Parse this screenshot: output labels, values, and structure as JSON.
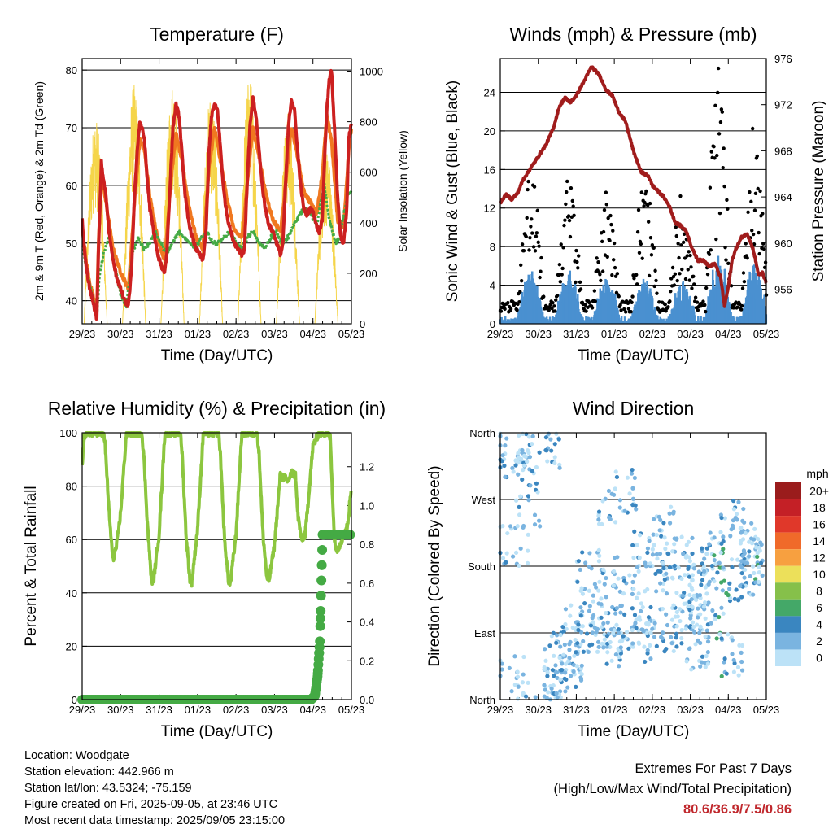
{
  "chart_data": [
    {
      "type": "line",
      "title": "Temperature (F)",
      "xlabel": "Time (Day/UTC)",
      "ylabel": "2m & 9m T (Red, Orange) & 2m Td (Green)",
      "y2label": "Solar Insolation (Yellow)",
      "x_ticks": [
        "29/23",
        "30/23",
        "31/23",
        "01/23",
        "02/23",
        "03/23",
        "04/23",
        "05/23"
      ],
      "ylim": [
        36,
        82
      ],
      "y_ticks": [
        40,
        50,
        60,
        70,
        80
      ],
      "y2lim": [
        0,
        1050
      ],
      "y2_ticks": [
        0,
        200,
        400,
        600,
        800,
        1000
      ],
      "grid": "horizontal",
      "series": [
        {
          "name": "2m T",
          "color": "#cc2020",
          "axis": "left",
          "x": [
            0,
            0.04,
            0.1,
            0.2,
            0.28,
            0.33,
            0.38,
            0.42,
            0.5,
            0.55,
            0.62,
            0.7,
            0.8,
            0.9,
            1.0,
            1.1,
            1.2,
            1.28,
            1.36,
            1.44,
            1.5,
            1.55,
            1.62,
            1.68,
            1.76,
            1.86,
            1.96,
            2.06,
            2.14,
            2.2,
            2.3,
            2.36,
            2.44,
            2.52,
            2.6,
            2.68,
            2.76,
            2.86,
            2.96,
            3.06,
            3.14,
            3.22,
            3.3,
            3.36,
            3.44,
            3.52,
            3.6,
            3.68,
            3.76,
            3.86,
            3.96,
            4.06,
            4.16,
            4.22,
            4.3,
            4.36,
            4.44,
            4.52,
            4.6,
            4.68,
            4.76,
            4.86,
            4.96,
            5.06,
            5.16,
            5.22,
            5.3,
            5.36,
            5.44,
            5.52,
            5.6,
            5.68,
            5.76,
            5.84,
            5.94,
            6.02,
            6.1,
            6.16,
            6.24,
            6.3,
            6.36,
            6.42,
            6.48,
            6.56,
            6.64,
            6.72,
            6.8,
            6.88,
            6.93,
            7.0
          ],
          "y": [
            54,
            50,
            46,
            42,
            40,
            38,
            37,
            48,
            64,
            61,
            58,
            52,
            47,
            44,
            42,
            40,
            39,
            45,
            58,
            67,
            71,
            70,
            68,
            62,
            56,
            52,
            48,
            46,
            45,
            48,
            62,
            70,
            74,
            72,
            65,
            58,
            54,
            51,
            49,
            48,
            47,
            52,
            66,
            72,
            74,
            73,
            66,
            59,
            55,
            52,
            50,
            49,
            48,
            49,
            62,
            70,
            75,
            72,
            66,
            60,
            56,
            53,
            52,
            50,
            48,
            50,
            62,
            70,
            75,
            73,
            66,
            60,
            56,
            55,
            56,
            55,
            53,
            52,
            54,
            64,
            73,
            78,
            80,
            70,
            58,
            51,
            50,
            56,
            68,
            71
          ]
        },
        {
          "name": "9m T",
          "color": "#f07820",
          "axis": "left",
          "x": [
            0,
            0.1,
            0.2,
            0.28,
            0.38,
            0.42,
            0.5,
            0.62,
            0.8,
            1.0,
            1.2,
            1.36,
            1.5,
            1.62,
            1.76,
            1.96,
            2.14,
            2.3,
            2.44,
            2.6,
            2.76,
            2.96,
            3.14,
            3.3,
            3.44,
            3.6,
            3.76,
            3.96,
            4.16,
            4.3,
            4.44,
            4.6,
            4.76,
            4.96,
            5.16,
            5.3,
            5.44,
            5.6,
            5.76,
            5.94,
            6.1,
            6.24,
            6.36,
            6.48,
            6.64,
            6.8,
            6.93,
            7.0
          ],
          "y": [
            53,
            47,
            43,
            41,
            38,
            49,
            62,
            57,
            49,
            45,
            42,
            57,
            68,
            66,
            58,
            51,
            47,
            60,
            69,
            64,
            57,
            51,
            49,
            63,
            70,
            64,
            58,
            52,
            51,
            61,
            70,
            65,
            59,
            54,
            52,
            61,
            70,
            65,
            59,
            57,
            55,
            62,
            72,
            68,
            54,
            53,
            66,
            70
          ]
        },
        {
          "name": "2m Td",
          "color": "#44aa44",
          "axis": "left",
          "x": [
            0,
            0.1,
            0.2,
            0.3,
            0.38,
            0.45,
            0.55,
            0.7,
            0.85,
            1.0,
            1.15,
            1.3,
            1.45,
            1.6,
            1.75,
            1.9,
            2.05,
            2.2,
            2.35,
            2.5,
            2.65,
            2.8,
            2.95,
            3.1,
            3.25,
            3.4,
            3.55,
            3.7,
            3.85,
            4.0,
            4.15,
            4.3,
            4.45,
            4.6,
            4.75,
            4.9,
            5.05,
            5.2,
            5.35,
            5.5,
            5.65,
            5.8,
            5.95,
            6.1,
            6.2,
            6.3,
            6.4,
            6.5,
            6.6,
            6.7,
            6.8,
            6.9,
            7.0
          ],
          "y": [
            50,
            46,
            43,
            40,
            37,
            44,
            48,
            51,
            46,
            41,
            39,
            48,
            51,
            49,
            50,
            52,
            50,
            48,
            50,
            52,
            51,
            50,
            49,
            51,
            52,
            50,
            50,
            51,
            52,
            50,
            49,
            51,
            52,
            50,
            49,
            51,
            52,
            50,
            51,
            53,
            55,
            56,
            55,
            53,
            57,
            60,
            55,
            52,
            50,
            51,
            55,
            58,
            59
          ]
        },
        {
          "name": "Solar Insolation",
          "color": "#f5d54a",
          "axis": "right",
          "peaks_day": [
            0.35,
            1.35,
            2.35,
            3.35,
            4.35,
            5.35,
            6.35
          ],
          "peaks_value": [
            820,
            950,
            960,
            920,
            980,
            840,
            700
          ]
        }
      ]
    },
    {
      "type": "scatter",
      "title": "Winds (mph) & Pressure (mb)",
      "xlabel": "Time (Day/UTC)",
      "ylabel": "Sonic Wind & Gust (Blue, Black)",
      "y2label": "Station Pressure (Maroon)",
      "x_ticks": [
        "29/23",
        "30/23",
        "31/23",
        "01/23",
        "02/23",
        "03/23",
        "04/23",
        "05/23"
      ],
      "ylim": [
        0,
        27.5
      ],
      "y_ticks": [
        0,
        4,
        8,
        12,
        16,
        20,
        24
      ],
      "y2lim": [
        953,
        976
      ],
      "y2_ticks": [
        956,
        960,
        964,
        968,
        972,
        976
      ],
      "grid": "horizontal",
      "series": [
        {
          "name": "Pressure",
          "color": "#a01c1c",
          "axis": "right",
          "x": [
            0,
            0.15,
            0.3,
            0.45,
            0.6,
            0.8,
            1.0,
            1.2,
            1.4,
            1.55,
            1.7,
            1.85,
            2.0,
            2.2,
            2.4,
            2.6,
            2.8,
            2.95,
            3.1,
            3.3,
            3.5,
            3.7,
            3.9,
            4.0,
            4.15,
            4.3,
            4.45,
            4.6,
            4.75,
            4.9,
            5.05,
            5.2,
            5.35,
            5.5,
            5.65,
            5.8,
            5.9,
            6.0,
            6.1,
            6.2,
            6.35,
            6.5,
            6.65,
            6.8,
            6.9,
            7.0
          ],
          "y": [
            963.5,
            964.2,
            963.8,
            964.3,
            965.5,
            966.5,
            967.5,
            968.5,
            970,
            971.8,
            972.6,
            972.2,
            972.8,
            974,
            975.3,
            974.6,
            973.2,
            972.8,
            971.5,
            970.5,
            968,
            966.2,
            965.8,
            965,
            964.5,
            964,
            963.2,
            961.8,
            961.5,
            961,
            959.5,
            958.5,
            958.5,
            958,
            958.2,
            957,
            954.5,
            956.2,
            958.5,
            959.5,
            960.5,
            960.8,
            959.5,
            957.2,
            957.4,
            956.5
          ]
        },
        {
          "name": "Gust",
          "color": "#000000",
          "axis": "left",
          "peaks_day": [
            0.8,
            1.8,
            2.8,
            3.8,
            4.8,
            5.75,
            6.7
          ],
          "peaks_value": [
            15,
            14,
            13,
            14,
            12,
            25,
            19
          ]
        },
        {
          "name": "Sonic Wind",
          "color": "#4a90d0",
          "axis": "left",
          "peaks_day": [
            0.8,
            1.8,
            2.8,
            3.8,
            4.8,
            5.75,
            6.7
          ],
          "peaks_value": [
            5,
            5,
            4.5,
            4.5,
            4,
            7,
            6
          ]
        }
      ]
    },
    {
      "type": "line",
      "title": "Relative Humidity (%) & Precipitation (in)",
      "xlabel": "Time (Day/UTC)",
      "ylabel": "Percent & Total Rainfall",
      "x_ticks": [
        "29/23",
        "30/23",
        "31/23",
        "01/23",
        "02/23",
        "03/23",
        "04/23",
        "05/23"
      ],
      "ylim": [
        0,
        100
      ],
      "y_ticks": [
        0,
        20,
        40,
        60,
        80,
        100
      ],
      "y2lim": [
        0,
        1.375
      ],
      "y2_ticks": [
        0.0,
        0.2,
        0.4,
        0.6,
        0.8,
        1.0,
        1.2
      ],
      "grid": "horizontal",
      "series": [
        {
          "name": "Relative Humidity",
          "color": "#8cc63f",
          "axis": "left",
          "x": [
            0,
            0.05,
            0.15,
            0.55,
            0.6,
            0.7,
            0.8,
            0.9,
            1.0,
            1.15,
            1.55,
            1.6,
            1.7,
            1.8,
            1.85,
            2.0,
            2.15,
            2.55,
            2.6,
            2.7,
            2.8,
            2.85,
            3.0,
            3.15,
            3.55,
            3.6,
            3.7,
            3.8,
            3.85,
            4.0,
            4.15,
            4.55,
            4.6,
            4.7,
            4.8,
            4.85,
            5.0,
            5.15,
            5.35,
            5.45,
            5.55,
            5.6,
            5.7,
            5.8,
            5.85,
            6.0,
            6.15,
            6.4,
            6.45,
            6.55,
            6.6,
            6.7,
            6.8,
            6.9,
            7.0
          ],
          "y": [
            88,
            98,
            100,
            100,
            95,
            70,
            52,
            58,
            70,
            100,
            100,
            92,
            65,
            45,
            44,
            62,
            100,
            100,
            92,
            62,
            45,
            44,
            64,
            100,
            100,
            90,
            60,
            45,
            43,
            62,
            100,
            100,
            92,
            62,
            46,
            44,
            58,
            84,
            82,
            85,
            84,
            70,
            60,
            62,
            70,
            95,
            100,
            100,
            98,
            62,
            56,
            58,
            62,
            65,
            80
          ]
        },
        {
          "name": "Total Precipitation",
          "color": "#44aa44",
          "axis": "right",
          "x": [
            0,
            5.95,
            6.05,
            6.12,
            6.18,
            6.25,
            6.4,
            7.0
          ],
          "y": [
            0,
            0,
            0.02,
            0.12,
            0.3,
            0.85,
            0.85,
            0.85
          ]
        }
      ]
    },
    {
      "type": "scatter",
      "title": "Wind Direction",
      "xlabel": "Time (Day/UTC)",
      "ylabel": "Direction (Colored By Speed)",
      "x_ticks": [
        "29/23",
        "30/23",
        "31/23",
        "01/23",
        "02/23",
        "03/23",
        "04/23",
        "05/23"
      ],
      "y_ticks": [
        "North",
        "East",
        "South",
        "West",
        "North"
      ],
      "ylim": [
        0,
        360
      ],
      "grid": "horizontal",
      "colorbar": {
        "title": "mph",
        "labels": [
          "20+",
          "18",
          "16",
          "14",
          "12",
          "10",
          "8",
          "6",
          "4",
          "2",
          "0"
        ],
        "colors": [
          "#9a1c1c",
          "#c42026",
          "#e0382a",
          "#f06a2a",
          "#f7a040",
          "#ece05a",
          "#86c04a",
          "#44a868",
          "#3a86c0",
          "#7ab4e0",
          "#bce2f7"
        ]
      }
    }
  ],
  "info": {
    "location": "Location: Woodgate",
    "elevation": "Station elevation: 442.966 m",
    "latlon": "Station lat/lon: 43.5324; -75.159",
    "created": "Figure created on Fri, 2025-09-05, at 23:46 UTC",
    "latest": "Most recent data timestamp: 2025/09/05 23:15:00"
  },
  "extremes": {
    "title": "Extremes For Past 7 Days",
    "subtitle": "(High/Low/Max Wind/Total Precipitation)",
    "values": "80.6/36.9/7.5/0.86"
  }
}
